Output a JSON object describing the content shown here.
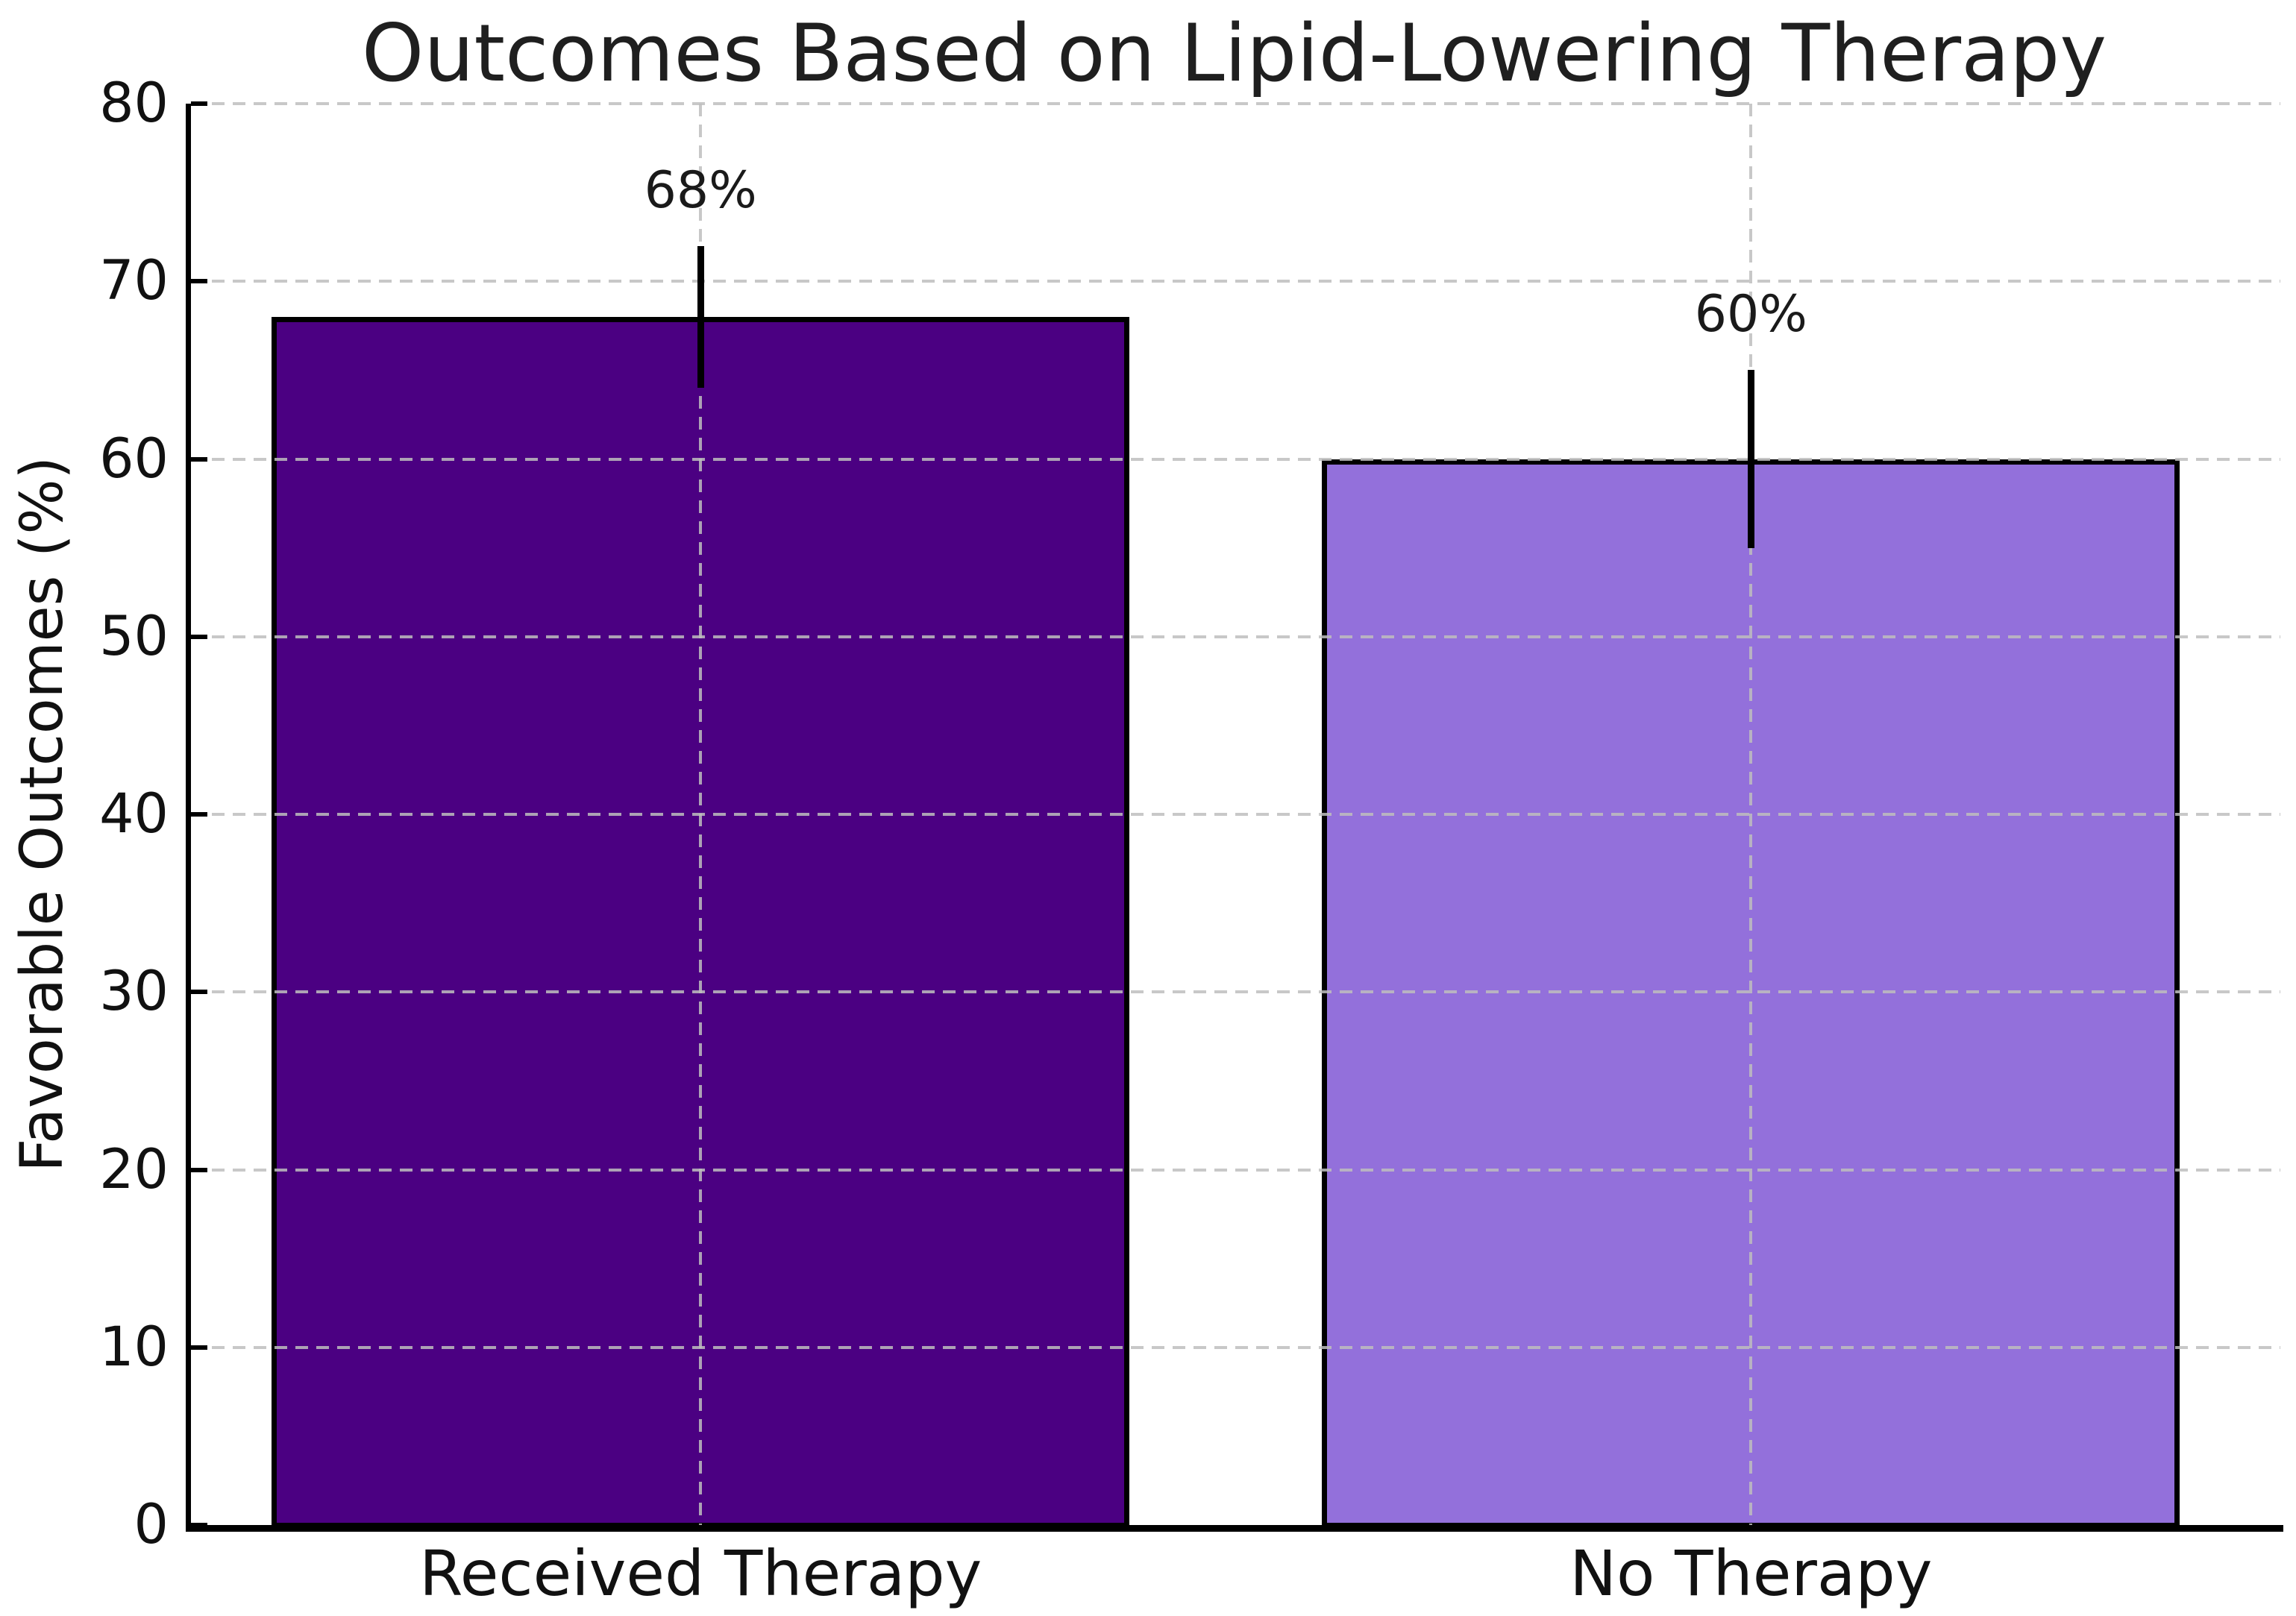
{
  "chart_data": {
    "type": "bar",
    "title": "Outcomes Based on Lipid-Lowering Therapy",
    "ylabel": "Favorable Outcomes (%)",
    "xlabel": "",
    "categories": [
      "Received Therapy",
      "No Therapy"
    ],
    "values": [
      68,
      60
    ],
    "errors": [
      4,
      5
    ],
    "bar_labels": [
      "68%",
      "60%"
    ],
    "bar_colors": [
      "#4B0082",
      "#9370DB"
    ],
    "bar_edge_color": "#000000",
    "error_bar_color": "#000000",
    "grid_color": "#BEBEBE",
    "ylim": [
      0,
      80
    ],
    "yticks": [
      0,
      10,
      20,
      30,
      40,
      50,
      60,
      70,
      80
    ],
    "grid": "dashed horizontal lines at y ticks and dashed vertical lines at bar centers, drawn on top of bars",
    "legend": "none",
    "spines": "left and bottom only, black; ticks point inward"
  }
}
